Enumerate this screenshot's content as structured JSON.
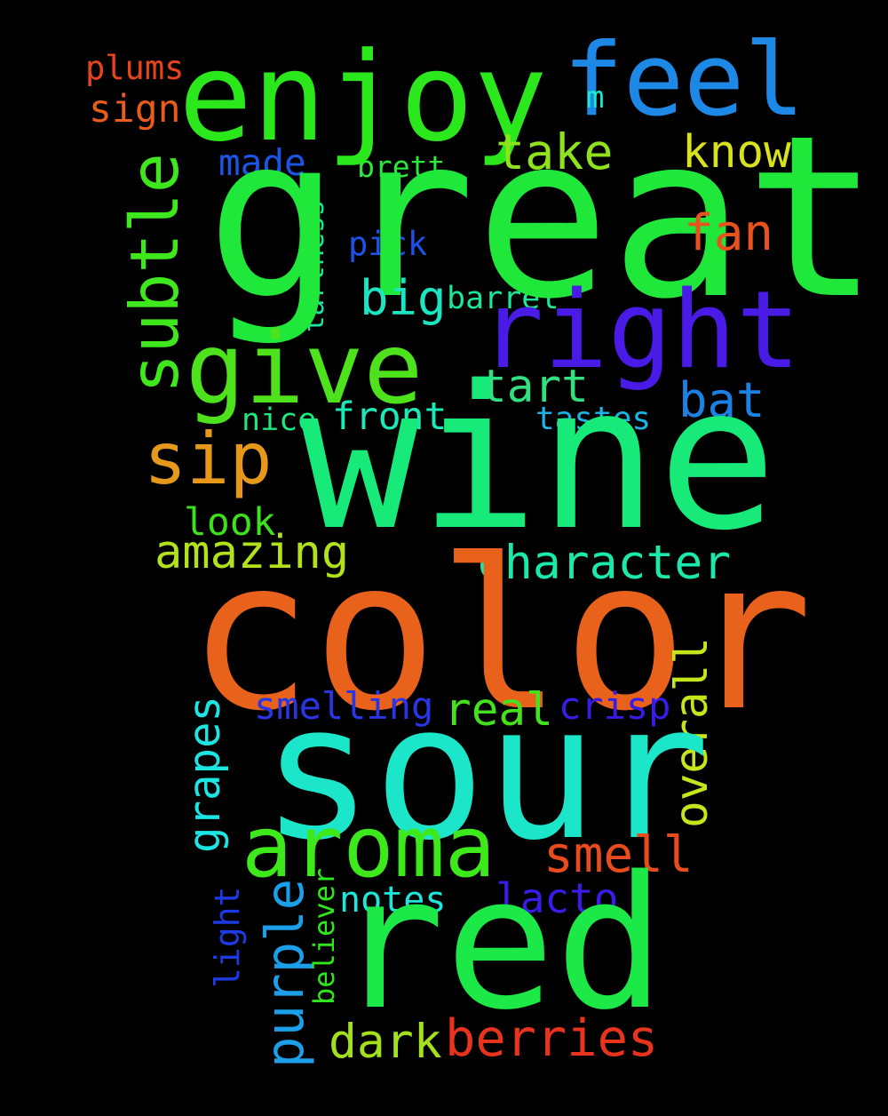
{
  "background": "#000000",
  "words": [
    {
      "key": "great",
      "text": "great",
      "color": "#1fe83a"
    },
    {
      "key": "wine",
      "text": "wine",
      "color": "#17ea79"
    },
    {
      "key": "color",
      "text": "color",
      "color": "#e8621c"
    },
    {
      "key": "sour",
      "text": "sour",
      "color": "#1be6c9"
    },
    {
      "key": "red",
      "text": "red",
      "color": "#1ce847"
    },
    {
      "key": "enjoy",
      "text": "enjoy",
      "color": "#2ae81c"
    },
    {
      "key": "feel",
      "text": "feel",
      "color": "#1e88e6"
    },
    {
      "key": "right",
      "text": "right",
      "color": "#4a1be6"
    },
    {
      "key": "give",
      "text": "give",
      "color": "#4de21c"
    },
    {
      "key": "aroma",
      "text": "aroma",
      "color": "#3de81b"
    },
    {
      "key": "subtle",
      "text": "subtle",
      "color": "#3ee81d"
    },
    {
      "key": "sip",
      "text": "sip",
      "color": "#e6981b"
    },
    {
      "key": "take",
      "text": "take",
      "color": "#8fe21c"
    },
    {
      "key": "know",
      "text": "know",
      "color": "#d7e21d"
    },
    {
      "key": "fan",
      "text": "fan",
      "color": "#e8521c"
    },
    {
      "key": "big",
      "text": "big",
      "color": "#1be6c2"
    },
    {
      "key": "tart",
      "text": "tart",
      "color": "#31e07f"
    },
    {
      "key": "bat",
      "text": "bat",
      "color": "#1c81e4"
    },
    {
      "key": "character",
      "text": "character",
      "color": "#1be8ab"
    },
    {
      "key": "amazing",
      "text": "amazing",
      "color": "#b1e21c"
    },
    {
      "key": "real",
      "text": "real",
      "color": "#42e21c"
    },
    {
      "key": "smelling",
      "text": "smelling",
      "color": "#2a35e6"
    },
    {
      "key": "crisp",
      "text": "crisp",
      "color": "#3a1ce8"
    },
    {
      "key": "overall",
      "text": "overall",
      "color": "#c6e61c"
    },
    {
      "key": "smell",
      "text": "smell",
      "color": "#e84b1c"
    },
    {
      "key": "grapes",
      "text": "grapes",
      "color": "#1be4e2"
    },
    {
      "key": "purple",
      "text": "purple",
      "color": "#1b9fe8"
    },
    {
      "key": "dark",
      "text": "dark",
      "color": "#a4e01c"
    },
    {
      "key": "berries",
      "text": "berries",
      "color": "#e8341c"
    },
    {
      "key": "made",
      "text": "made",
      "color": "#1c54e6"
    },
    {
      "key": "brett",
      "text": "brett",
      "color": "#2ae83c"
    },
    {
      "key": "tartness",
      "text": "tartness",
      "color": "#1be6a1"
    },
    {
      "key": "pick",
      "text": "pick",
      "color": "#1c52e8"
    },
    {
      "key": "barrel",
      "text": "barrel",
      "color": "#1be699"
    },
    {
      "key": "front",
      "text": "front",
      "color": "#1de8b8"
    },
    {
      "key": "nice",
      "text": "nice",
      "color": "#1ce87c"
    },
    {
      "key": "tastes",
      "text": "tastes",
      "color": "#1cb3e6"
    },
    {
      "key": "look",
      "text": "look",
      "color": "#3ee21c"
    },
    {
      "key": "plums",
      "text": "plums",
      "color": "#e8441c"
    },
    {
      "key": "sign",
      "text": "sign",
      "color": "#e85c1c"
    },
    {
      "key": "m",
      "text": "m",
      "color": "#1be8ce"
    },
    {
      "key": "notes",
      "text": "notes",
      "color": "#1de6dd"
    },
    {
      "key": "lacto",
      "text": "lacto",
      "color": "#3a1ce6"
    },
    {
      "key": "believer",
      "text": "believer",
      "color": "#2fe81c"
    },
    {
      "key": "light",
      "text": "light",
      "color": "#1c3ae6"
    }
  ]
}
